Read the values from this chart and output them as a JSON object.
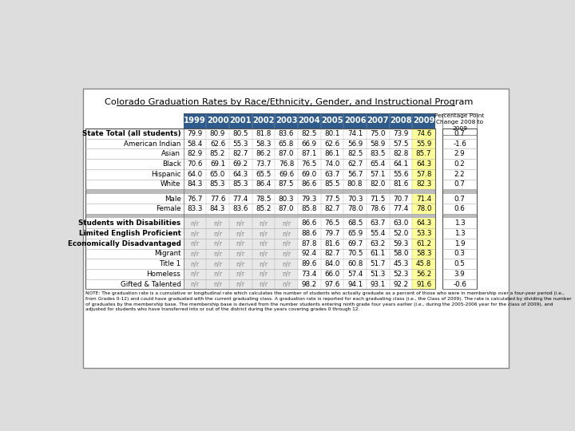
{
  "title": "Colorado Graduation Rates by Race/Ethnicity, Gender, and Instructional Program",
  "years": [
    "1999",
    "2000",
    "2001",
    "2002",
    "2003",
    "2004",
    "2005",
    "2006",
    "2007",
    "2008",
    "2009"
  ],
  "header_bg": "#2E5B8C",
  "header_fg": "#FFFFFF",
  "row_groups": [
    {
      "rows": [
        {
          "label": "State Total (all students)",
          "bold": true,
          "values": [
            "79.9",
            "80.9",
            "80.5",
            "81.8",
            "83.6",
            "82.5",
            "80.1",
            "74.1",
            "75.0",
            "73.9",
            "74.6"
          ],
          "change": "0.7"
        },
        {
          "label": "American Indian",
          "bold": false,
          "values": [
            "58.4",
            "62.6",
            "55.3",
            "58.3",
            "65.8",
            "66.9",
            "62.6",
            "56.9",
            "58.9",
            "57.5",
            "55.9"
          ],
          "change": "-1.6"
        },
        {
          "label": "Asian",
          "bold": false,
          "values": [
            "82.9",
            "85.2",
            "82.7",
            "86.2",
            "87.0",
            "87.1",
            "86.1",
            "82.5",
            "83.5",
            "82.8",
            "85.7"
          ],
          "change": "2.9"
        },
        {
          "label": "Black",
          "bold": false,
          "values": [
            "70.6",
            "69.1",
            "69.2",
            "73.7",
            "76.8",
            "76.5",
            "74.0",
            "62.7",
            "65.4",
            "64.1",
            "64.3"
          ],
          "change": "0.2"
        },
        {
          "label": "Hispanic",
          "bold": false,
          "values": [
            "64.0",
            "65.0",
            "64.3",
            "65.5",
            "69.6",
            "69.0",
            "63.7",
            "56.7",
            "57.1",
            "55.6",
            "57.8"
          ],
          "change": "2.2"
        },
        {
          "label": "White",
          "bold": false,
          "values": [
            "84.3",
            "85.3",
            "85.3",
            "86.4",
            "87.5",
            "86.6",
            "85.5",
            "80.8",
            "82.0",
            "81.6",
            "82.3"
          ],
          "change": "0.7"
        }
      ],
      "separator_after": true
    },
    {
      "rows": [
        {
          "label": "Male",
          "bold": false,
          "values": [
            "76.7",
            "77.6",
            "77.4",
            "78.5",
            "80.3",
            "79.3",
            "77.5",
            "70.3",
            "71.5",
            "70.7",
            "71.4"
          ],
          "change": "0.7"
        },
        {
          "label": "Female",
          "bold": false,
          "values": [
            "83.3",
            "84.3",
            "83.6",
            "85.2",
            "87.0",
            "85.8",
            "82.7",
            "78.0",
            "78.6",
            "77.4",
            "78.0"
          ],
          "change": "0.6"
        }
      ],
      "separator_after": true
    },
    {
      "rows": [
        {
          "label": "Students with Disabilities",
          "bold": true,
          "values": [
            "n/r",
            "n/r",
            "n/r",
            "n/r",
            "n/r",
            "86.6",
            "76.5",
            "68.5",
            "63.7",
            "63.0",
            "64.3"
          ],
          "change": "1.3"
        },
        {
          "label": "Limited English Proficient",
          "bold": true,
          "values": [
            "n/r",
            "n/r",
            "n/r",
            "n/r",
            "n/r",
            "88.6",
            "79.7",
            "65.9",
            "55.4",
            "52.0",
            "53.3"
          ],
          "change": "1.3"
        },
        {
          "label": "Economically Disadvantaged",
          "bold": true,
          "values": [
            "n/r",
            "n/r",
            "n/r",
            "n/r",
            "n/r",
            "87.8",
            "81.6",
            "69.7",
            "63.2",
            "59.3",
            "61.2"
          ],
          "change": "1.9"
        },
        {
          "label": "Migrant",
          "bold": false,
          "values": [
            "n/r",
            "n/r",
            "n/r",
            "n/r",
            "n/r",
            "92.4",
            "82.7",
            "70.5",
            "61.1",
            "58.0",
            "58.3"
          ],
          "change": "0.3"
        },
        {
          "label": "Title 1",
          "bold": false,
          "values": [
            "n/r",
            "n/r",
            "n/r",
            "n/r",
            "n/r",
            "89.6",
            "84.0",
            "60.8",
            "51.7",
            "45.3",
            "45.8"
          ],
          "change": "0.5"
        },
        {
          "label": "Homeless",
          "bold": false,
          "values": [
            "n/r",
            "n/r",
            "n/r",
            "n/r",
            "n/r",
            "73.4",
            "66.0",
            "57.4",
            "51.3",
            "52.3",
            "56.2"
          ],
          "change": "3.9"
        },
        {
          "label": "Gifted & Talented",
          "bold": false,
          "values": [
            "n/r",
            "n/r",
            "n/r",
            "n/r",
            "n/r",
            "98.2",
            "97.6",
            "94.1",
            "93.1",
            "92.2",
            "91.6"
          ],
          "change": "-0.6"
        }
      ],
      "separator_after": false
    }
  ],
  "yellow_bg": "#FFFF99",
  "note": "NOTE: The graduation rate is a cumulative or longitudinal rate which calculates the number of students who actually graduate as a percent of those who were in membership over a four-year period (i.e., from Grades 0-12) and could have graduated with the current graduating class. A graduation rate is reported for each graduating class (i.e., the Class of 2009). The rate is calculated by dividing the number of graduates by the membership base. The membership base is derived from the number students entering ninth grade four years earlier (i.e., during the 2005-2006 year for the class of 2009), and adjusted for students who have transferred into or out of the district during the years covering grades 0 through 12."
}
